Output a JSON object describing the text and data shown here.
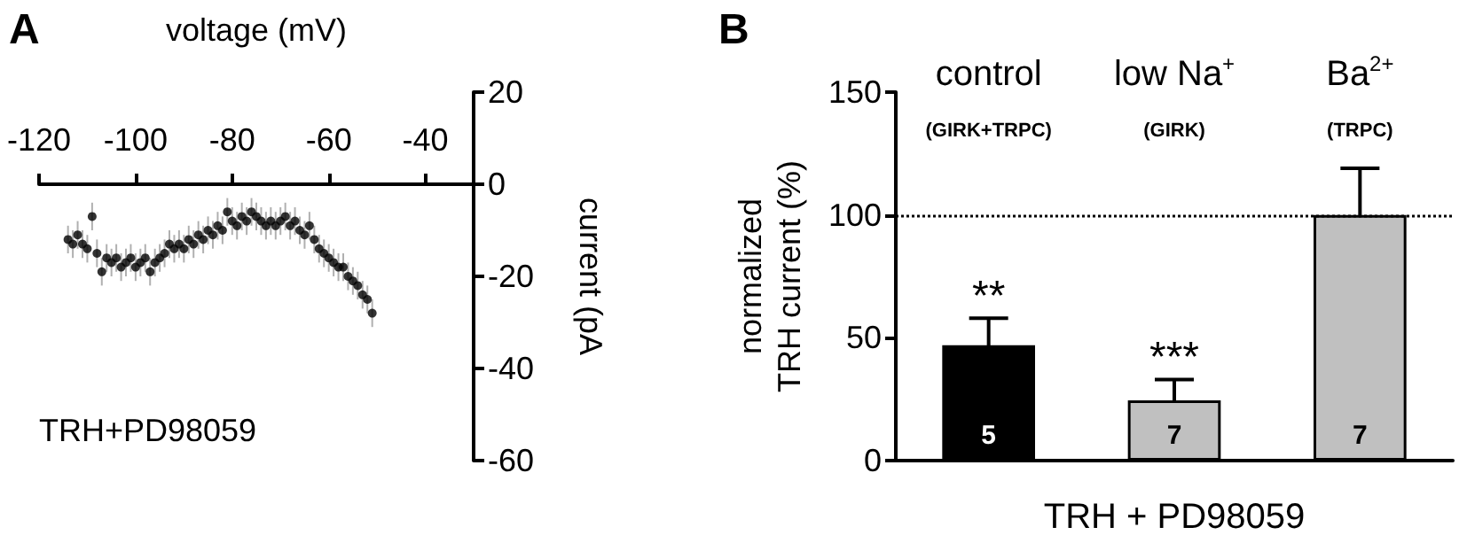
{
  "chart_data": [
    {
      "type": "scatter",
      "title": "A",
      "xlabel": "voltage (mV)",
      "ylabel": "current (pA",
      "color": "#000000",
      "marker": "circle",
      "x": [
        -114,
        -113,
        -112,
        -111,
        -110,
        -109,
        -108,
        -107,
        -106,
        -105,
        -104,
        -103,
        -102,
        -101,
        -100,
        -99,
        -98,
        -97,
        -96,
        -95,
        -94,
        -93,
        -92,
        -91,
        -90,
        -89,
        -88,
        -87,
        -86,
        -85,
        -84,
        -83,
        -82,
        -81,
        -80,
        -79,
        -78,
        -77,
        -76,
        -75,
        -74,
        -73,
        -72,
        -71,
        -70,
        -69,
        -68,
        -67,
        -66,
        -65,
        -64,
        -63,
        -62,
        -61,
        -60,
        -59,
        -58,
        -57,
        -56,
        -55,
        -54,
        -53,
        -52,
        -51
      ],
      "values": [
        -12,
        -13,
        -11,
        -13,
        -14,
        -7,
        -15,
        -19,
        -16,
        -17,
        -16,
        -18,
        -17,
        -16,
        -18,
        -17,
        -16,
        -19,
        -17,
        -16,
        -15,
        -13,
        -14,
        -13,
        -14,
        -12,
        -13,
        -11,
        -12,
        -10,
        -11,
        -9,
        -10,
        -6,
        -8,
        -9,
        -7,
        -8,
        -6,
        -7,
        -8,
        -9,
        -8,
        -9,
        -8,
        -7,
        -9,
        -8,
        -10,
        -11,
        -9,
        -12,
        -14,
        -15,
        -16,
        -17,
        -18,
        -18,
        -20,
        -21,
        -22,
        -24,
        -25,
        -28
      ],
      "errors": [
        3,
        3,
        3,
        3,
        3,
        3,
        3,
        3,
        3,
        3,
        3,
        3,
        3,
        3,
        3,
        3,
        3,
        3,
        3,
        3,
        3,
        3,
        3,
        3,
        3,
        3,
        3,
        3,
        3,
        3,
        3,
        3,
        3,
        3,
        3,
        3,
        3,
        3,
        3,
        3,
        3,
        3,
        3,
        3,
        3,
        3,
        3,
        3,
        3,
        3,
        3,
        3,
        3,
        3,
        3,
        3,
        3,
        3,
        3,
        3,
        3,
        3,
        3,
        3
      ],
      "xlim": [
        -120,
        -30
      ],
      "xticks": [
        -120,
        -100,
        -80,
        -60,
        -40
      ],
      "ylim": [
        -60,
        20
      ],
      "yticks": [
        -60,
        -40,
        -20,
        0,
        20
      ],
      "annotations": [
        "TRH+PD98059"
      ]
    },
    {
      "type": "bar",
      "title": "B",
      "xlabel": "TRH + PD98059",
      "ylabel": "normalized\nTRH current (%)",
      "categories": [
        "control\n(GIRK+TRPC)",
        "low Na$^{+}$\n(GIRK)",
        "Ba$^{2+}$\n(TRPC)"
      ],
      "values": [
        47,
        24.5,
        100
      ],
      "colors": [
        "#000000",
        "#c0c0c0",
        "#c0c0c0"
      ],
      "errors": [
        11,
        8.5,
        19
      ],
      "ylim": [
        0,
        150
      ],
      "yticks": [
        0,
        50,
        100,
        150
      ],
      "ref_lines": [
        {
          "axis": "y",
          "value": 100,
          "color": "#000000",
          "line_style": "dotted"
        }
      ],
      "annotations": [
        {
          "text": "**",
          "x": "control\n(GIRK+TRPC)",
          "y": 58
        },
        {
          "text": "***",
          "x": "low Na$^{+}$\n(GIRK)",
          "y": 33
        },
        {
          "text": "5",
          "x": "control\n(GIRK+TRPC)",
          "y": 0
        },
        {
          "text": "7",
          "x": "low Na$^{+}$\n(GIRK)",
          "y": 0
        },
        {
          "text": "7",
          "x": "Ba$^{2+}$\n(TRPC)",
          "y": 0
        }
      ]
    }
  ]
}
